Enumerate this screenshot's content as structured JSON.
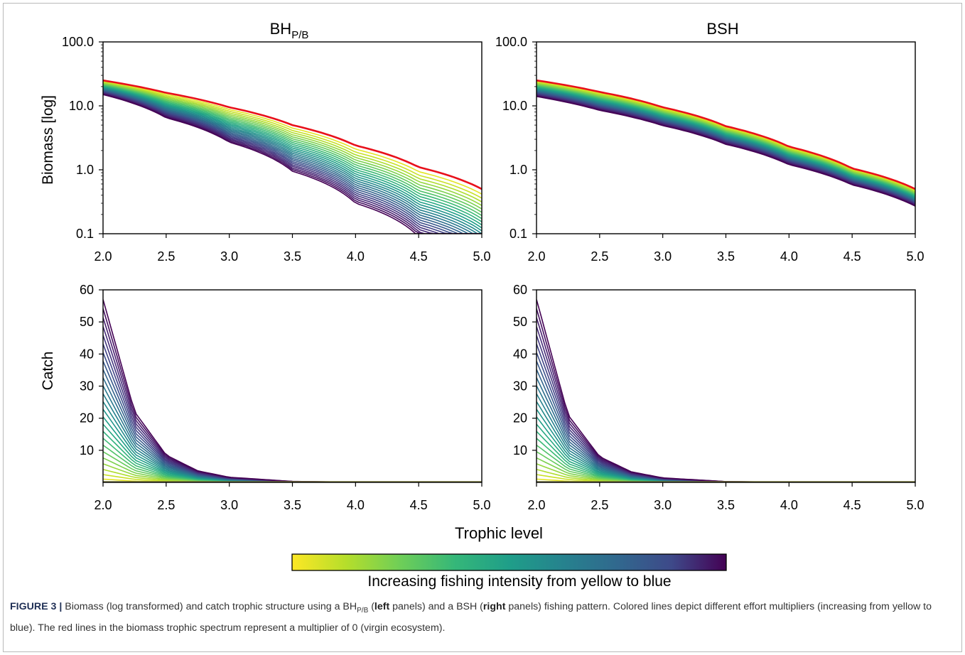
{
  "figure": {
    "caption": {
      "label": "FIGURE 3 |",
      "p1": " Biomass (log transformed) and catch trophic structure using a BH",
      "sub_pb": "P/B",
      "p2": " (",
      "left_word": "left",
      "p3": " panels) and a BSH (",
      "right_word": "right",
      "p4": " panels) fishing pattern. Colored lines depict different effort multipliers (increasing from yellow to blue). The red lines in the biomass trophic spectrum represent a multiplier of 0 (virgin ecosystem)."
    },
    "colorbar_label": "Increasing fishing intensity from yellow to blue",
    "colors": {
      "virgin_line": "#e8101a",
      "viridis_start": "#fde725",
      "viridis_end": "#440154"
    }
  },
  "chart_data": [
    {
      "id": "biomass-bhpb",
      "type": "line",
      "title_main": "BH",
      "title_sub": "P/B",
      "xlabel": "",
      "ylabel": "Biomass [log]",
      "yscale": "log",
      "xlim": [
        2.0,
        5.0
      ],
      "ylim": [
        0.1,
        100.0
      ],
      "x_ticks": [
        "2.0",
        "2.5",
        "3.0",
        "3.5",
        "4.0",
        "4.5",
        "5.0"
      ],
      "y_ticks": [
        "0.1",
        "1.0",
        "10.0",
        "100.0"
      ],
      "series_count": 25,
      "series_note": "effort multipliers, yellow to dark blue",
      "x": [
        2.0,
        2.5,
        3.0,
        3.5,
        4.0,
        4.5,
        5.0
      ],
      "virgin": [
        25.0,
        16.0,
        9.5,
        5.0,
        2.4,
        1.1,
        0.5
      ],
      "max_effort": [
        15.0,
        6.5,
        2.7,
        0.95,
        0.3,
        0.09,
        0.03
      ]
    },
    {
      "id": "biomass-bsh",
      "type": "line",
      "title_main": "BSH",
      "title_sub": "",
      "xlabel": "",
      "ylabel": "",
      "yscale": "log",
      "xlim": [
        2.0,
        5.0
      ],
      "ylim": [
        0.1,
        100.0
      ],
      "x_ticks": [
        "2.0",
        "2.5",
        "3.0",
        "3.5",
        "4.0",
        "4.5",
        "5.0"
      ],
      "y_ticks": [
        "0.1",
        "1.0",
        "10.0",
        "100.0"
      ],
      "series_count": 25,
      "series_note": "effort multipliers, yellow to dark blue",
      "x": [
        2.0,
        2.5,
        3.0,
        3.5,
        4.0,
        4.5,
        5.0
      ],
      "virgin": [
        25.0,
        16.5,
        9.5,
        4.8,
        2.3,
        1.05,
        0.5
      ],
      "max_effort": [
        14.0,
        8.5,
        4.9,
        2.5,
        1.2,
        0.58,
        0.27
      ]
    },
    {
      "id": "catch-bhpb",
      "type": "line",
      "title_main": "",
      "title_sub": "",
      "xlabel": "",
      "ylabel": "Catch",
      "yscale": "linear",
      "xlim": [
        2.0,
        5.0
      ],
      "ylim": [
        0,
        60
      ],
      "x_ticks": [
        "2.0",
        "2.5",
        "3.0",
        "3.5",
        "4.0",
        "4.5",
        "5.0"
      ],
      "y_ticks": [
        "10",
        "20",
        "30",
        "40",
        "50",
        "60"
      ],
      "series_count": 25,
      "series_note": "effort multipliers, yellow to dark blue",
      "x": [
        2.0,
        2.25,
        2.5,
        2.75,
        3.0,
        3.5,
        4.0,
        4.5,
        5.0
      ],
      "max_effort": [
        57.0,
        22.0,
        8.5,
        3.6,
        1.6,
        0.3,
        0.05,
        0.0,
        0.0
      ]
    },
    {
      "id": "catch-bsh",
      "type": "line",
      "title_main": "",
      "title_sub": "",
      "xlabel": "",
      "ylabel": "",
      "yscale": "linear",
      "xlim": [
        2.0,
        5.0
      ],
      "ylim": [
        0,
        60
      ],
      "x_ticks": [
        "2.0",
        "2.5",
        "3.0",
        "3.5",
        "4.0",
        "4.5",
        "5.0"
      ],
      "y_ticks": [
        "10",
        "20",
        "30",
        "40",
        "50",
        "60"
      ],
      "series_count": 25,
      "series_note": "effort multipliers, yellow to dark blue",
      "x": [
        2.0,
        2.25,
        2.5,
        2.75,
        3.0,
        3.5,
        4.0,
        4.5,
        5.0
      ],
      "max_effort": [
        57.0,
        21.0,
        8.0,
        3.3,
        1.4,
        0.25,
        0.04,
        0.0,
        0.0
      ]
    }
  ],
  "shared_xlabel": "Trophic level"
}
